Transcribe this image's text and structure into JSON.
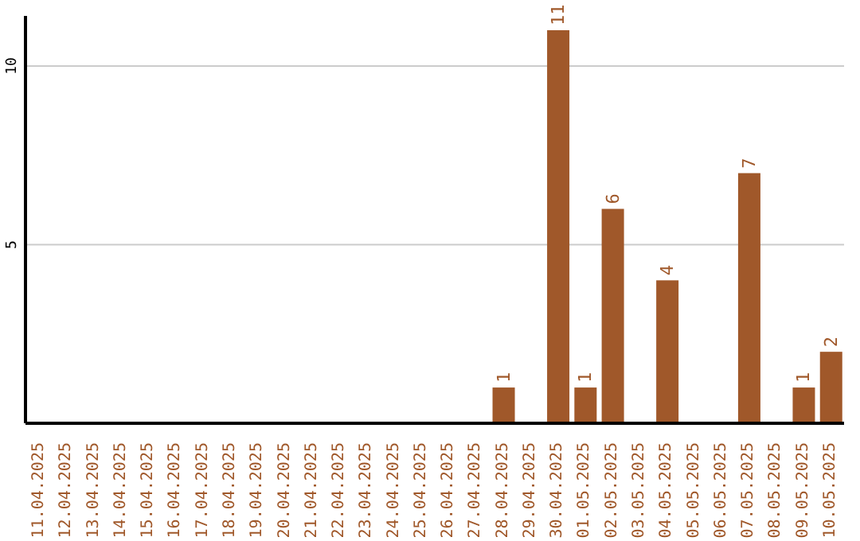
{
  "chart_data": {
    "type": "bar",
    "categories": [
      "11.04.2025",
      "12.04.2025",
      "13.04.2025",
      "14.04.2025",
      "15.04.2025",
      "16.04.2025",
      "17.04.2025",
      "18.04.2025",
      "19.04.2025",
      "20.04.2025",
      "21.04.2025",
      "22.04.2025",
      "23.04.2025",
      "24.04.2025",
      "25.04.2025",
      "26.04.2025",
      "27.04.2025",
      "28.04.2025",
      "29.04.2025",
      "30.04.2025",
      "01.05.2025",
      "02.05.2025",
      "03.05.2025",
      "04.05.2025",
      "05.05.2025",
      "06.05.2025",
      "07.05.2025",
      "08.05.2025",
      "09.05.2025",
      "10.05.2025"
    ],
    "values": [
      0,
      0,
      0,
      0,
      0,
      0,
      0,
      0,
      0,
      0,
      0,
      0,
      0,
      0,
      0,
      0,
      0,
      1,
      0,
      11,
      1,
      6,
      0,
      4,
      0,
      0,
      7,
      0,
      1,
      2
    ],
    "value_labels": [
      null,
      null,
      null,
      null,
      null,
      null,
      null,
      null,
      null,
      null,
      null,
      null,
      null,
      null,
      null,
      null,
      null,
      "1",
      null,
      "11",
      "1",
      "6",
      null,
      "4",
      null,
      null,
      "7",
      null,
      "1",
      "2"
    ],
    "color": "#a0582a",
    "ylim": [
      0,
      11.4
    ],
    "yticks": [
      5,
      10
    ],
    "grid": "y"
  }
}
